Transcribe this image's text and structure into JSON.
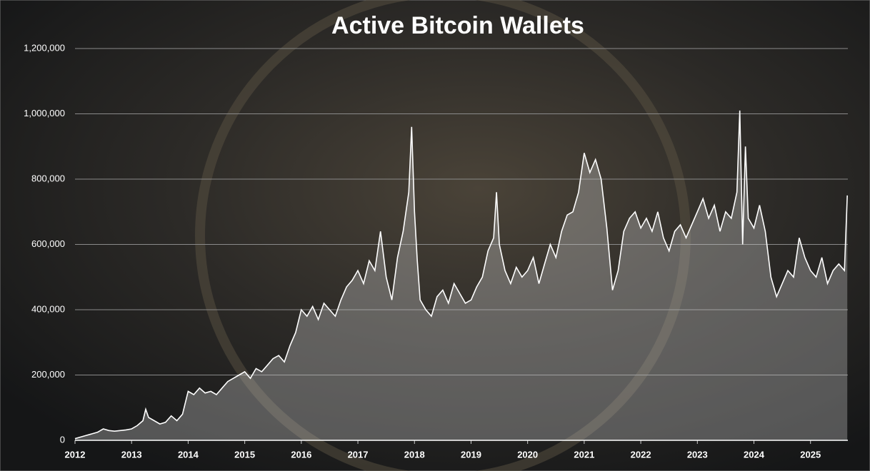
{
  "chart_data": {
    "type": "area",
    "title": "Active Bitcoin Wallets",
    "x": [
      2012.0,
      2012.1,
      2012.2,
      2012.3,
      2012.4,
      2012.5,
      2012.6,
      2012.7,
      2012.8,
      2012.9,
      2013.0,
      2013.1,
      2013.2,
      2013.25,
      2013.3,
      2013.4,
      2013.5,
      2013.6,
      2013.7,
      2013.8,
      2013.9,
      2014.0,
      2014.1,
      2014.2,
      2014.3,
      2014.4,
      2014.5,
      2014.6,
      2014.7,
      2014.8,
      2014.9,
      2015.0,
      2015.1,
      2015.2,
      2015.3,
      2015.4,
      2015.5,
      2015.6,
      2015.7,
      2015.8,
      2015.9,
      2016.0,
      2016.1,
      2016.2,
      2016.3,
      2016.4,
      2016.5,
      2016.6,
      2016.7,
      2016.8,
      2016.9,
      2017.0,
      2017.1,
      2017.2,
      2017.3,
      2017.4,
      2017.5,
      2017.6,
      2017.7,
      2017.8,
      2017.9,
      2017.95,
      2018.0,
      2018.05,
      2018.1,
      2018.2,
      2018.3,
      2018.4,
      2018.5,
      2018.6,
      2018.7,
      2018.8,
      2018.9,
      2019.0,
      2019.1,
      2019.2,
      2019.3,
      2019.4,
      2019.45,
      2019.5,
      2019.6,
      2019.7,
      2019.8,
      2019.9,
      2020.0,
      2020.1,
      2020.2,
      2020.3,
      2020.4,
      2020.5,
      2020.6,
      2020.7,
      2020.8,
      2020.9,
      2021.0,
      2021.1,
      2021.2,
      2021.3,
      2021.4,
      2021.5,
      2021.6,
      2021.7,
      2021.8,
      2021.9,
      2022.0,
      2022.1,
      2022.2,
      2022.3,
      2022.4,
      2022.5,
      2022.6,
      2022.7,
      2022.8,
      2022.9,
      2023.0,
      2023.1,
      2023.2,
      2023.3,
      2023.4,
      2023.5,
      2023.6,
      2023.7,
      2023.75,
      2023.8,
      2023.85,
      2023.9,
      2024.0,
      2024.1,
      2024.2,
      2024.3,
      2024.4,
      2024.5,
      2024.6,
      2024.7,
      2024.8,
      2024.9,
      2025.0,
      2025.1,
      2025.2,
      2025.3,
      2025.4,
      2025.5,
      2025.6,
      2025.65
    ],
    "series": [
      {
        "name": "Active Bitcoin Wallets",
        "color": "#ffffff",
        "values": [
          5000,
          10000,
          15000,
          20000,
          25000,
          35000,
          30000,
          28000,
          30000,
          32000,
          35000,
          45000,
          60000,
          95000,
          70000,
          60000,
          50000,
          55000,
          75000,
          60000,
          80000,
          150000,
          140000,
          160000,
          145000,
          150000,
          140000,
          160000,
          180000,
          190000,
          200000,
          210000,
          190000,
          220000,
          210000,
          230000,
          250000,
          260000,
          240000,
          290000,
          330000,
          400000,
          380000,
          410000,
          370000,
          420000,
          400000,
          380000,
          430000,
          470000,
          490000,
          520000,
          480000,
          550000,
          520000,
          640000,
          500000,
          430000,
          560000,
          640000,
          760000,
          960000,
          700000,
          550000,
          430000,
          400000,
          380000,
          440000,
          460000,
          420000,
          480000,
          450000,
          420000,
          430000,
          470000,
          500000,
          580000,
          620000,
          760000,
          600000,
          520000,
          480000,
          530000,
          500000,
          520000,
          560000,
          480000,
          540000,
          600000,
          560000,
          640000,
          690000,
          700000,
          760000,
          880000,
          820000,
          860000,
          800000,
          650000,
          460000,
          520000,
          640000,
          680000,
          700000,
          650000,
          680000,
          640000,
          700000,
          620000,
          580000,
          640000,
          660000,
          620000,
          660000,
          700000,
          740000,
          680000,
          720000,
          640000,
          700000,
          680000,
          760000,
          1010000,
          600000,
          900000,
          680000,
          650000,
          720000,
          640000,
          500000,
          440000,
          480000,
          520000,
          500000,
          620000,
          560000,
          520000,
          500000,
          560000,
          480000,
          520000,
          540000,
          520000,
          750000
        ]
      }
    ],
    "xlim": [
      2012,
      2025.66
    ],
    "xticks": [
      2012,
      2013,
      2014,
      2015,
      2016,
      2017,
      2018,
      2019,
      2020,
      2021,
      2022,
      2023,
      2024,
      2025
    ],
    "ylim": [
      0,
      1200000
    ],
    "yticks": [
      0,
      {
        "value": 200000,
        "label": "200,000"
      },
      {
        "value": 400000,
        "label": "400,000"
      },
      {
        "value": 600000,
        "label": "600,000"
      },
      {
        "value": 800000,
        "label": "800,000"
      },
      {
        "value": 1000000,
        "label": "1,000,000"
      },
      {
        "value": 1200000,
        "label": "1,200,000"
      }
    ],
    "grid": true
  }
}
